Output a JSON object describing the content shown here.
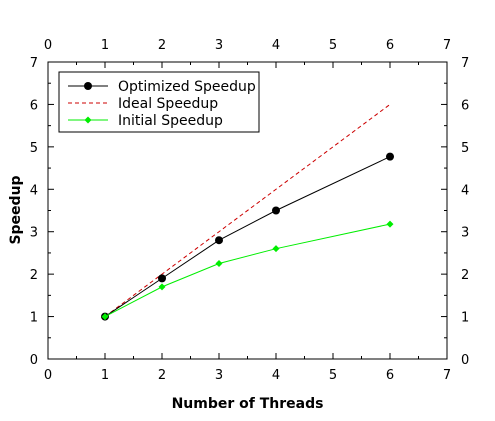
{
  "chart_data": {
    "type": "line",
    "xlabel": "Number of Threads",
    "ylabel": "Speedup",
    "xlim": [
      0,
      7
    ],
    "ylim": [
      0,
      7
    ],
    "xticks": [
      0,
      1,
      2,
      3,
      4,
      5,
      6,
      7
    ],
    "yticks": [
      0,
      1,
      2,
      3,
      4,
      5,
      6,
      7
    ],
    "grid": false,
    "mirror_axes": true,
    "legend_position": "top-left",
    "series": [
      {
        "name": "Optimized Speedup",
        "x": [
          1,
          2,
          3,
          4,
          6
        ],
        "y": [
          1.0,
          1.9,
          2.8,
          3.5,
          4.77
        ],
        "color": "#000000",
        "line": "solid",
        "marker": "circle"
      },
      {
        "name": "Ideal Speedup",
        "x": [
          1,
          2,
          3,
          4,
          6
        ],
        "y": [
          1,
          2,
          3,
          4,
          6
        ],
        "color": "#cc0000",
        "line": "dashed",
        "marker": "none"
      },
      {
        "name": "Initial Speedup",
        "x": [
          1,
          2,
          3,
          4,
          6
        ],
        "y": [
          1.0,
          1.7,
          2.25,
          2.6,
          3.18
        ],
        "color": "#00ee00",
        "line": "solid",
        "marker": "diamond"
      }
    ]
  }
}
